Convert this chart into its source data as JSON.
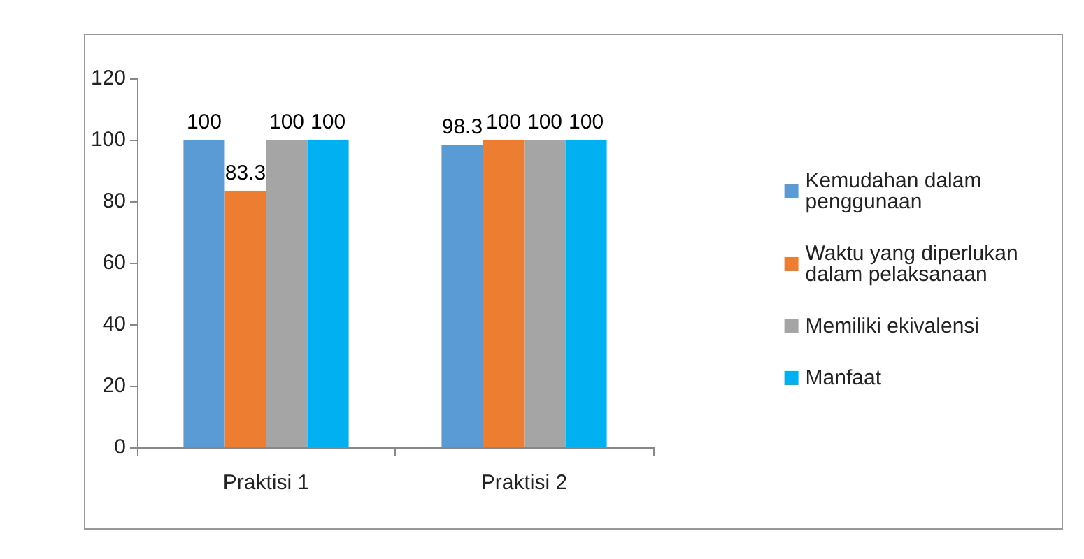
{
  "chart_data": {
    "type": "bar",
    "categories": [
      "Praktisi 1",
      "Praktisi 2"
    ],
    "series": [
      {
        "name": "Kemudahan dalam penggunaan",
        "color": "#5b9bd5",
        "values": [
          100,
          98.3
        ]
      },
      {
        "name": "Waktu yang diperlukan dalam pelaksanaan",
        "color": "#ed7d31",
        "values": [
          83.3,
          100
        ]
      },
      {
        "name": "Memiliki ekivalensi",
        "color": "#a5a5a5",
        "values": [
          100,
          100
        ]
      },
      {
        "name": "Manfaat",
        "color": "#00b0f0",
        "values": [
          100,
          100
        ]
      }
    ],
    "ylim": [
      0,
      120
    ],
    "yticks": [
      0,
      20,
      40,
      60,
      80,
      100,
      120
    ],
    "grid": false,
    "legend": "right",
    "data_labels": true
  }
}
